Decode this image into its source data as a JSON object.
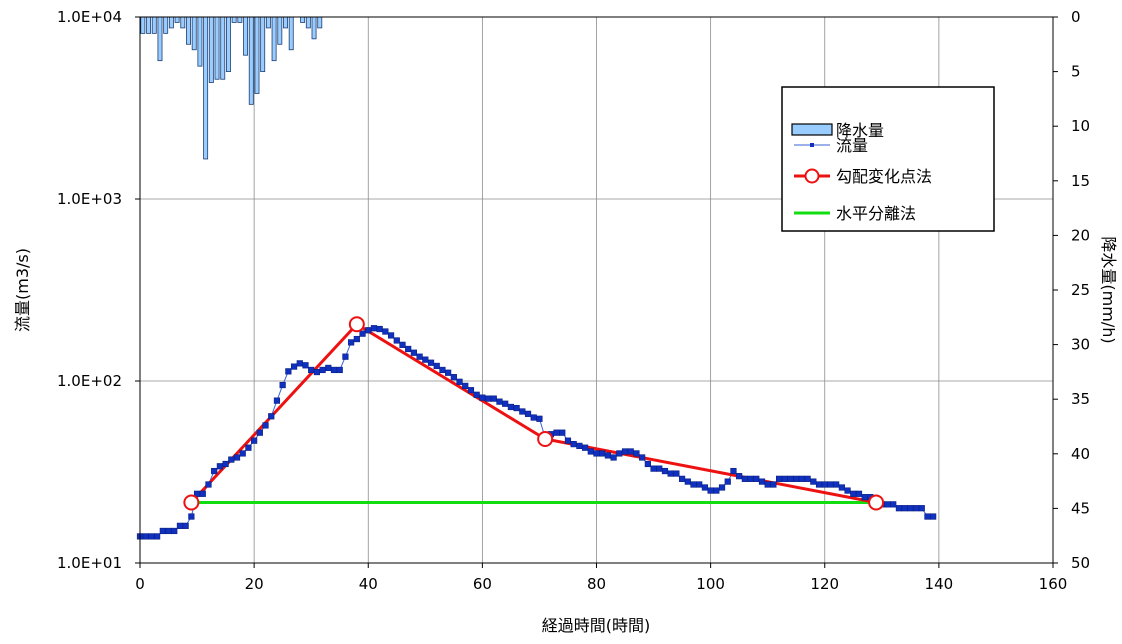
{
  "chart_data": {
    "type": "line",
    "title": "",
    "xlabel": "経過時間(時間)",
    "ylabel_left": "流量(m3/s)",
    "ylabel_right": "降水量(mm/h)",
    "x_range": [
      0,
      160
    ],
    "x_ticks": [
      0,
      20,
      40,
      60,
      80,
      100,
      120,
      140,
      160
    ],
    "y_left_scale": "log",
    "y_left_range": [
      10,
      10000
    ],
    "y_left_tick_values": [
      10,
      100,
      1000,
      10000
    ],
    "y_left_tick_labels": [
      "1.0E+01",
      "1.0E+02",
      "1.0E+03",
      "1.0E+04"
    ],
    "y_right_range": [
      0,
      50
    ],
    "y_right_inverted": true,
    "y_right_ticks": [
      0,
      5,
      10,
      15,
      20,
      25,
      30,
      35,
      40,
      45,
      50
    ],
    "grid": true,
    "legend_position": "top-right",
    "colors": {
      "precip_fill": "#99ccff",
      "precip_stroke": "#1f3f73",
      "flow": "#3a63d6",
      "flow_marker": "#1030c0",
      "gradient": "#ee1111",
      "horizontal": "#11dd11",
      "grid": "#8c8c8c"
    },
    "series": [
      {
        "name": "降水量",
        "kind": "bar",
        "axis": "right",
        "x": [
          0,
          1,
          2,
          3,
          4,
          5,
          6,
          7,
          8,
          9,
          10,
          11,
          12,
          13,
          14,
          15,
          16,
          17,
          18,
          19,
          20,
          21,
          22,
          23,
          24,
          25,
          26,
          27,
          28,
          29,
          30,
          31
        ],
        "values": [
          1.5,
          1.5,
          1.5,
          4,
          1.5,
          1,
          0.5,
          1,
          2.5,
          3,
          4.5,
          13,
          6,
          5.7,
          5.7,
          5,
          0.5,
          0.5,
          3.5,
          8,
          7,
          5,
          1,
          4,
          2.5,
          1,
          3,
          0,
          0.5,
          1,
          2,
          1
        ]
      },
      {
        "name": "流量",
        "kind": "line",
        "axis": "left",
        "x": [
          0,
          1,
          2,
          3,
          4,
          5,
          6,
          7,
          8,
          9,
          10,
          11,
          12,
          13,
          14,
          15,
          16,
          17,
          18,
          19,
          20,
          21,
          22,
          23,
          24,
          25,
          26,
          27,
          28,
          29,
          30,
          31,
          32,
          33,
          34,
          35,
          36,
          37,
          38,
          39,
          40,
          41,
          42,
          43,
          44,
          45,
          46,
          47,
          48,
          49,
          50,
          51,
          52,
          53,
          54,
          55,
          56,
          57,
          58,
          59,
          60,
          61,
          62,
          63,
          64,
          65,
          66,
          67,
          68,
          69,
          70,
          71,
          72,
          73,
          74,
          75,
          76,
          77,
          78,
          79,
          80,
          81,
          82,
          83,
          84,
          85,
          86,
          87,
          88,
          89,
          90,
          91,
          92,
          93,
          94,
          95,
          96,
          97,
          98,
          99,
          100,
          101,
          102,
          103,
          104,
          105,
          106,
          107,
          108,
          109,
          110,
          111,
          112,
          113,
          114,
          115,
          116,
          117,
          118,
          119,
          120,
          121,
          122,
          123,
          124,
          125,
          126,
          127,
          128,
          129,
          130,
          131,
          132,
          133,
          134,
          135,
          136,
          137,
          138,
          139
        ],
        "values": [
          14,
          14,
          14,
          14,
          15,
          15,
          15,
          16,
          16,
          18,
          24,
          24,
          27,
          32,
          34,
          35,
          37,
          38,
          40,
          43,
          47,
          52,
          57,
          64,
          78,
          95,
          113,
          120,
          125,
          122,
          115,
          112,
          115,
          118,
          115,
          115,
          136,
          163,
          170,
          182,
          190,
          195,
          193,
          187,
          178,
          167,
          158,
          150,
          143,
          136,
          131,
          126,
          121,
          115,
          111,
          105,
          99,
          94,
          89,
          84,
          81,
          80,
          80,
          77,
          75,
          72,
          71,
          68,
          66,
          63,
          62,
          49,
          51,
          52,
          52,
          47,
          45,
          44,
          43,
          41,
          40,
          40,
          39,
          38,
          40,
          41,
          41,
          40,
          38,
          35,
          33,
          33,
          32,
          31,
          31,
          29,
          28,
          27,
          27,
          26,
          25,
          25,
          26,
          28,
          32,
          30,
          29,
          29,
          29,
          28,
          27,
          27,
          29,
          29,
          29,
          29,
          29,
          29,
          28,
          27,
          27,
          27,
          27,
          26,
          25,
          24,
          24,
          23,
          23,
          22,
          21,
          21,
          21,
          20,
          20,
          20,
          20,
          20,
          18,
          18
        ]
      },
      {
        "name": "勾配変化点法",
        "kind": "line",
        "axis": "left",
        "x": [
          9,
          38,
          71,
          129
        ],
        "values": [
          21.5,
          205,
          48,
          21.5
        ]
      },
      {
        "name": "水平分離法",
        "kind": "line",
        "axis": "left",
        "x": [
          9,
          129
        ],
        "values": [
          21.5,
          21.5
        ]
      }
    ]
  }
}
